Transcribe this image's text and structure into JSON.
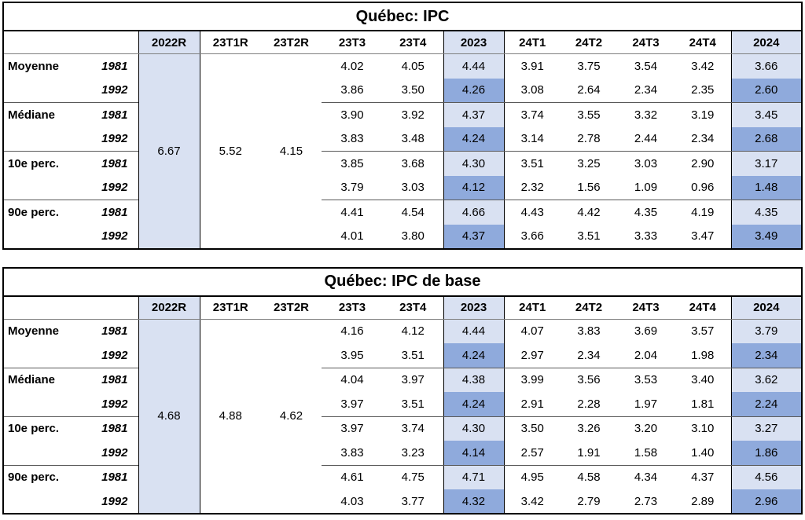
{
  "accent_colors": {
    "light_fill": "#D9E1F2",
    "dark_fill": "#8FAADC",
    "grid_black": "#000000",
    "grid_gray": "#7f7f7f"
  },
  "chart_data": [
    {
      "type": "table",
      "title": "Québec: IPC",
      "columns": [
        "2022R",
        "23T1R",
        "23T2R",
        "23T3",
        "23T4",
        "2023",
        "24T1",
        "24T2",
        "24T3",
        "24T4",
        "2024"
      ],
      "merged_columns": [
        "2022R",
        "23T1R",
        "23T2R"
      ],
      "merged_values": [
        "6.67",
        "5.52",
        "4.15"
      ],
      "row_labels": [
        "Moyenne",
        "",
        "Médiane",
        "",
        "10e perc.",
        "",
        "90e perc.",
        ""
      ],
      "years": [
        "1981",
        "1992",
        "1981",
        "1992",
        "1981",
        "1992",
        "1981",
        "1992"
      ],
      "value_columns": [
        "23T3",
        "23T4",
        "2023",
        "24T1",
        "24T2",
        "24T3",
        "24T4",
        "2024"
      ],
      "rows": [
        [
          "4.02",
          "4.05",
          "4.44",
          "3.91",
          "3.75",
          "3.54",
          "3.42",
          "3.66"
        ],
        [
          "3.86",
          "3.50",
          "4.26",
          "3.08",
          "2.64",
          "2.34",
          "2.35",
          "2.60"
        ],
        [
          "3.90",
          "3.92",
          "4.37",
          "3.74",
          "3.55",
          "3.32",
          "3.19",
          "3.45"
        ],
        [
          "3.83",
          "3.48",
          "4.24",
          "3.14",
          "2.78",
          "2.44",
          "2.34",
          "2.68"
        ],
        [
          "3.85",
          "3.68",
          "4.30",
          "3.51",
          "3.25",
          "3.03",
          "2.90",
          "3.17"
        ],
        [
          "3.79",
          "3.03",
          "4.12",
          "2.32",
          "1.56",
          "1.09",
          "0.96",
          "1.48"
        ],
        [
          "4.41",
          "4.54",
          "4.66",
          "4.43",
          "4.42",
          "4.35",
          "4.19",
          "4.35"
        ],
        [
          "4.01",
          "3.80",
          "4.37",
          "3.66",
          "3.51",
          "3.33",
          "3.47",
          "3.49"
        ]
      ]
    },
    {
      "type": "table",
      "title": "Québec: IPC de base",
      "columns": [
        "2022R",
        "23T1R",
        "23T2R",
        "23T3",
        "23T4",
        "2023",
        "24T1",
        "24T2",
        "24T3",
        "24T4",
        "2024"
      ],
      "merged_columns": [
        "2022R",
        "23T1R",
        "23T2R"
      ],
      "merged_values": [
        "4.68",
        "4.88",
        "4.62"
      ],
      "row_labels": [
        "Moyenne",
        "",
        "Médiane",
        "",
        "10e perc.",
        "",
        "90e perc.",
        ""
      ],
      "years": [
        "1981",
        "1992",
        "1981",
        "1992",
        "1981",
        "1992",
        "1981",
        "1992"
      ],
      "value_columns": [
        "23T3",
        "23T4",
        "2023",
        "24T1",
        "24T2",
        "24T3",
        "24T4",
        "2024"
      ],
      "rows": [
        [
          "4.16",
          "4.12",
          "4.44",
          "4.07",
          "3.83",
          "3.69",
          "3.57",
          "3.79"
        ],
        [
          "3.95",
          "3.51",
          "4.24",
          "2.97",
          "2.34",
          "2.04",
          "1.98",
          "2.34"
        ],
        [
          "4.04",
          "3.97",
          "4.38",
          "3.99",
          "3.56",
          "3.53",
          "3.40",
          "3.62"
        ],
        [
          "3.97",
          "3.51",
          "4.24",
          "2.91",
          "2.28",
          "1.97",
          "1.81",
          "2.24"
        ],
        [
          "3.97",
          "3.74",
          "4.30",
          "3.50",
          "3.26",
          "3.20",
          "3.10",
          "3.27"
        ],
        [
          "3.83",
          "3.23",
          "4.14",
          "2.57",
          "1.91",
          "1.58",
          "1.40",
          "1.86"
        ],
        [
          "4.61",
          "4.75",
          "4.71",
          "4.95",
          "4.58",
          "4.34",
          "4.37",
          "4.56"
        ],
        [
          "4.03",
          "3.77",
          "4.32",
          "3.42",
          "2.79",
          "2.73",
          "2.89",
          "2.96"
        ]
      ]
    }
  ]
}
